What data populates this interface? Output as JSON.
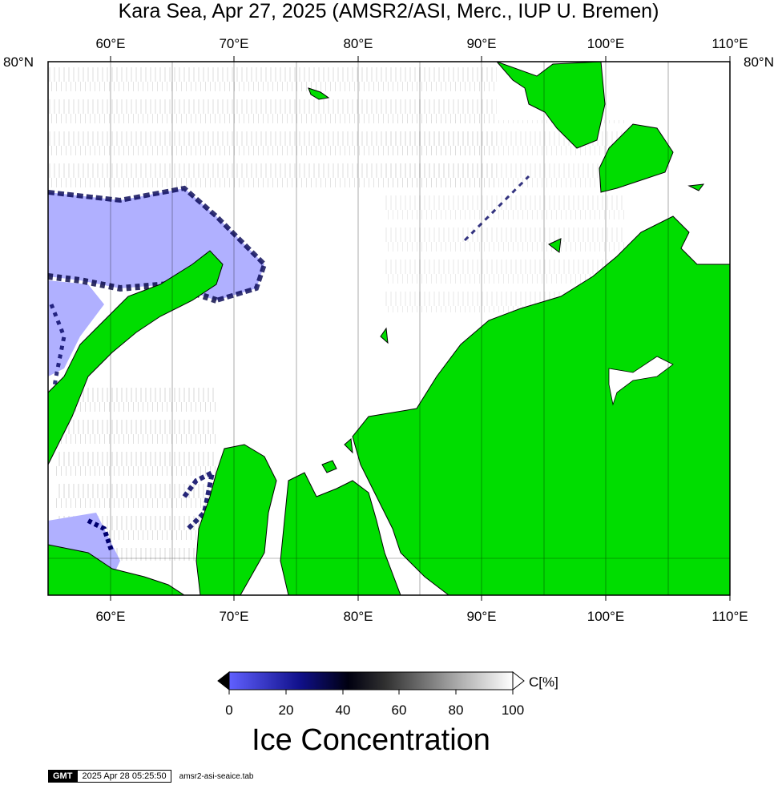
{
  "title": "Kara Sea, Apr 27, 2025 (AMSR2/ASI, Merc., IUP U. Bremen)",
  "map": {
    "lon_ticks": [
      "60°E",
      "70°E",
      "80°E",
      "90°E",
      "100°E",
      "110°E"
    ],
    "lat_label": "80°N",
    "colors": {
      "land": "#00dd00",
      "open_water": "#b0b0ff",
      "ice_background": "#ffffff",
      "coastline": "#000000"
    }
  },
  "colorbar": {
    "unit_label": "C[%]",
    "tick_labels": [
      "0",
      "20",
      "40",
      "60",
      "80",
      "100"
    ],
    "title": "Ice Concentration",
    "stops": [
      "#5050ff",
      "#000060",
      "#000000",
      "#ffffff"
    ]
  },
  "stamp": {
    "logo": "GMT",
    "timestamp": "2025 Apr 28 05:25:50",
    "filename": "amsr2-asi-seaice.tab"
  }
}
